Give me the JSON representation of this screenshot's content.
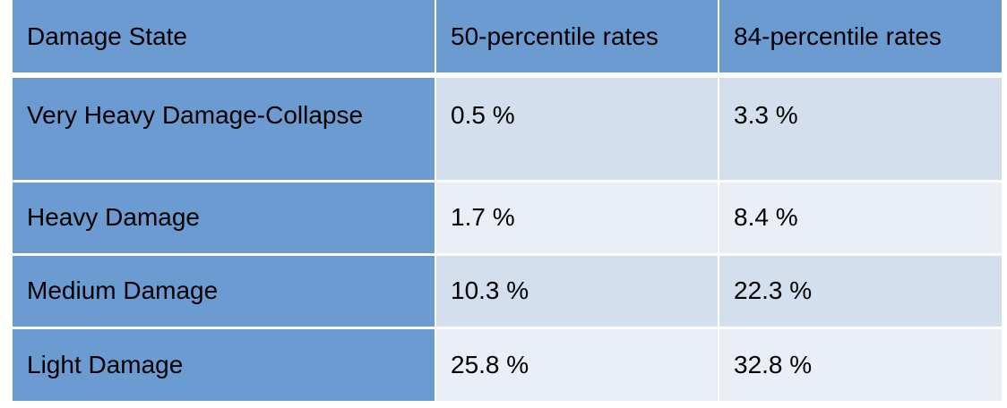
{
  "table": {
    "headers": [
      "Damage State",
      "50-percentile rates",
      "84-percentile rates"
    ],
    "rows": [
      {
        "state": "Very Heavy Damage-Collapse",
        "p50": "0.5 %",
        "p84": "3.3 %"
      },
      {
        "state": "Heavy Damage",
        "p50": "1.7 %",
        "p84": "8.4 %"
      },
      {
        "state": "Medium Damage",
        "p50": "10.3 %",
        "p84": "22.3 %"
      },
      {
        "state": "Light Damage",
        "p50": "25.8 %",
        "p84": "32.8 %"
      }
    ]
  },
  "colors": {
    "header_bg": "#6b9bd0",
    "row_odd_bg": "#d3dfec",
    "row_even_bg": "#eaeff7"
  }
}
